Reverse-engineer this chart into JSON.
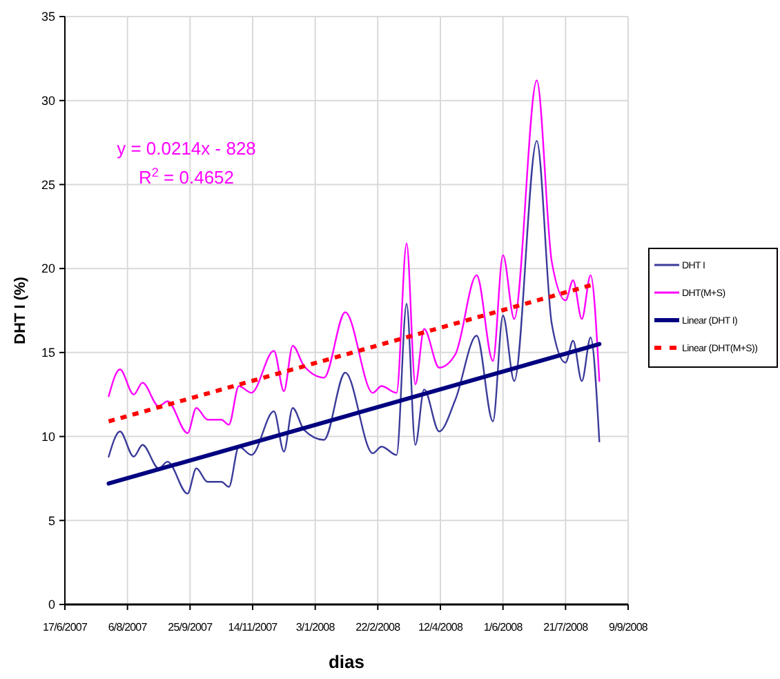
{
  "chart_data": {
    "type": "line",
    "xlabel": "dias",
    "ylabel": "DHT I (%)",
    "x": [
      "2007-07-22",
      "2007-07-31",
      "2007-08-11",
      "2007-08-18",
      "2007-08-31",
      "2007-09-07",
      "2007-09-23",
      "2007-09-30",
      "2007-10-09",
      "2007-10-20",
      "2007-10-26",
      "2007-11-03",
      "2007-11-13",
      "2007-12-01",
      "2007-12-09",
      "2007-12-16",
      "2007-12-25",
      "2008-01-10",
      "2008-01-27",
      "2008-02-18",
      "2008-02-25",
      "2008-03-08",
      "2008-03-16",
      "2008-03-23",
      "2008-03-30",
      "2008-04-11",
      "2008-04-24",
      "2008-05-11",
      "2008-05-24",
      "2008-06-01",
      "2008-06-10",
      "2008-06-28",
      "2008-07-10",
      "2008-07-21",
      "2008-07-27",
      "2008-08-03",
      "2008-08-10",
      "2008-08-17"
    ],
    "series": [
      {
        "name": "DHT I",
        "color": "#3a3a9a",
        "values": [
          8.8,
          10.3,
          8.8,
          9.5,
          8.1,
          8.5,
          6.6,
          8.1,
          7.3,
          7.3,
          7.0,
          9.4,
          8.9,
          11.5,
          9.1,
          11.7,
          10.4,
          9.8,
          13.8,
          9.0,
          9.4,
          8.9,
          17.9,
          9.5,
          12.8,
          10.3,
          12.2,
          16.0,
          10.9,
          17.2,
          13.3,
          27.6,
          16.7,
          14.4,
          15.7,
          13.3,
          15.9,
          9.7
        ]
      },
      {
        "name": "DHT(M+S)",
        "color": "#ff00ff",
        "values": [
          12.4,
          14.0,
          12.5,
          13.2,
          11.8,
          12.1,
          10.2,
          11.7,
          11.0,
          11.0,
          10.7,
          13.0,
          12.6,
          15.1,
          12.7,
          15.4,
          14.2,
          13.5,
          17.4,
          12.6,
          13.0,
          12.6,
          21.5,
          13.1,
          16.4,
          14.1,
          14.9,
          19.6,
          14.5,
          20.8,
          17.0,
          31.2,
          20.4,
          18.1,
          19.3,
          17.0,
          19.6,
          13.3
        ]
      },
      {
        "name": "Linear (DHT I)",
        "color": "#000080",
        "x": [
          "2007-07-22",
          "2008-08-17"
        ],
        "values": [
          7.2,
          15.5
        ],
        "line_style": "solid"
      },
      {
        "name": "Linear (DHT(M+S))",
        "color": "#ff0000",
        "x": [
          "2007-07-22",
          "2008-08-10"
        ],
        "values": [
          10.9,
          19.0
        ],
        "line_style": "dotted"
      }
    ],
    "annotations": [
      "y = 0.0214x - 828",
      "R$^{2}$ = 0.4652"
    ],
    "xlim": [
      "2007-06-17",
      "2008-09-09"
    ],
    "xticks": [
      {
        "value": "2007-06-17",
        "label": "17/6/2007"
      },
      {
        "value": "2007-08-06",
        "label": "6/8/2007"
      },
      {
        "value": "2007-09-25",
        "label": "25/9/2007"
      },
      {
        "value": "2007-11-14",
        "label": "14/11/2007"
      },
      {
        "value": "2008-01-03",
        "label": "3/1/2008"
      },
      {
        "value": "2008-02-22",
        "label": "22/2/2008"
      },
      {
        "value": "2008-04-12",
        "label": "12/4/2008"
      },
      {
        "value": "2008-06-01",
        "label": "1/6/2008"
      },
      {
        "value": "2008-07-21",
        "label": "21/7/2008"
      },
      {
        "value": "2008-09-09",
        "label": "9/9/2008"
      }
    ],
    "ylim": [
      0,
      35
    ],
    "yticks": [
      0,
      5,
      10,
      15,
      20,
      25,
      30,
      35
    ],
    "grid": true,
    "legend": "right",
    "marker": "none"
  }
}
